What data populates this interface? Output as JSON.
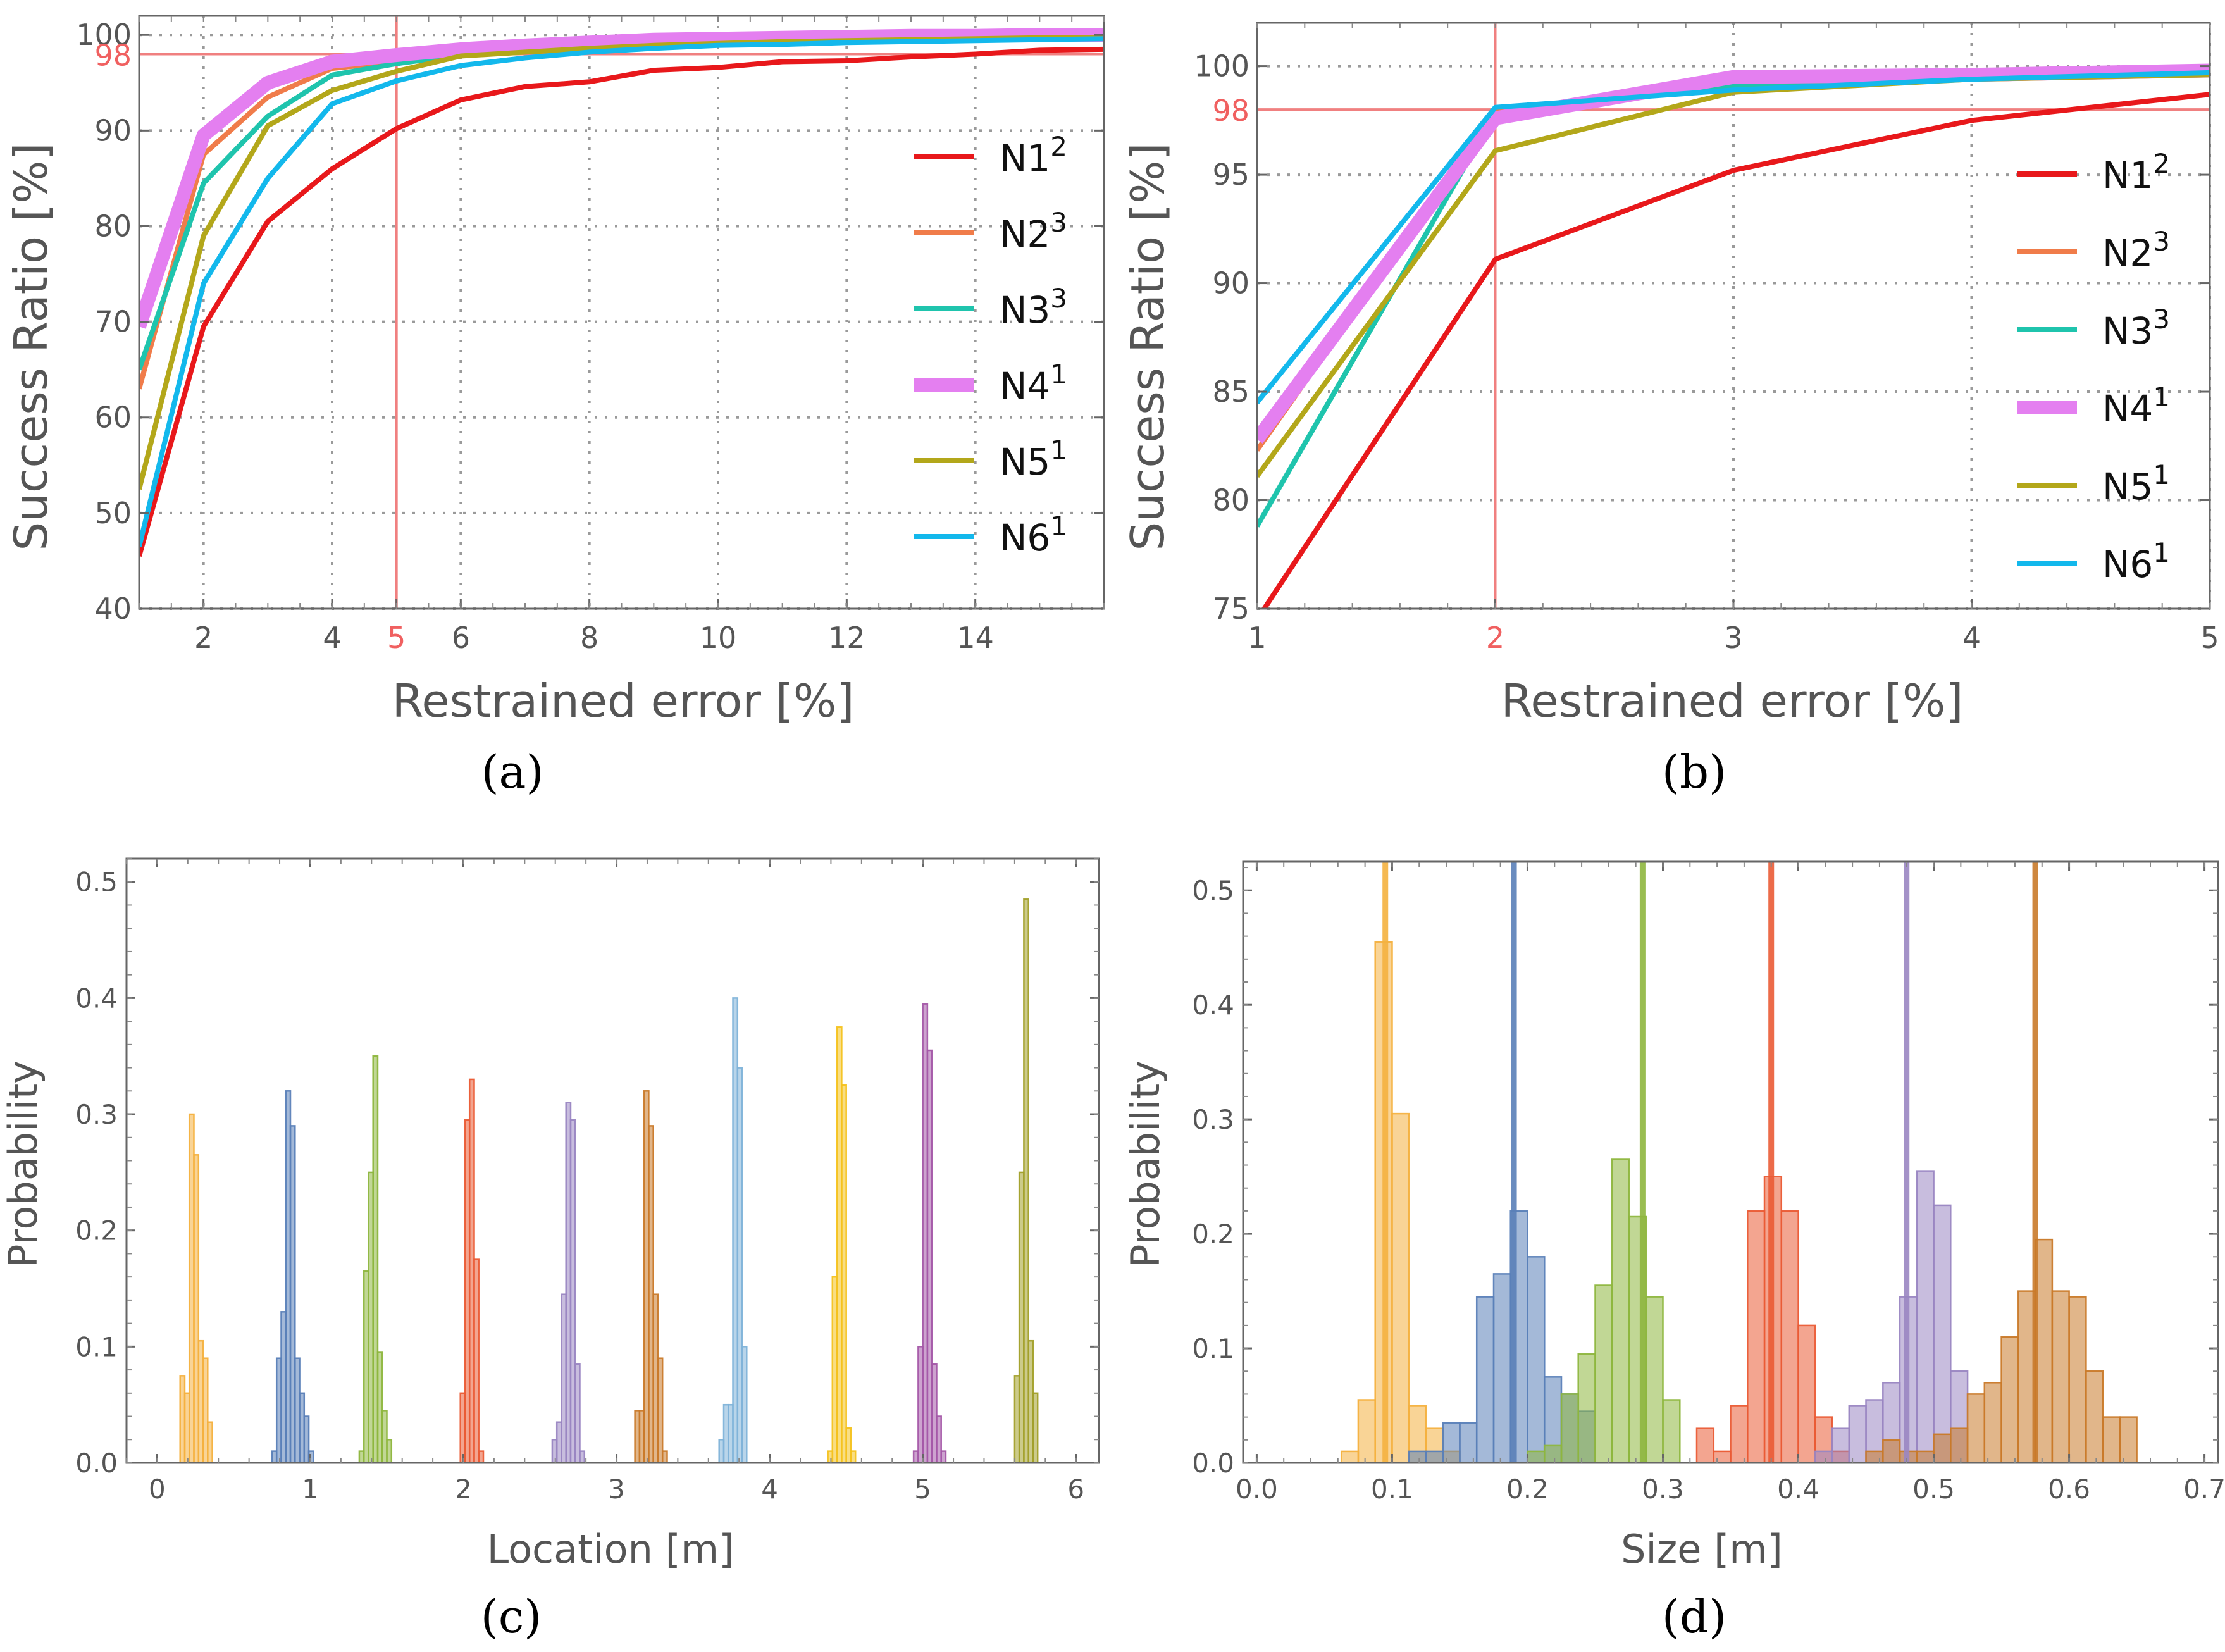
{
  "chart_data": [
    {
      "id": "a",
      "type": "line",
      "caption": "(a)",
      "xlabel": "Restrained error [%]",
      "ylabel": "Success Ratio [%]",
      "xlim": [
        1,
        16
      ],
      "ylim": [
        40,
        102
      ],
      "xticks": [
        2,
        4,
        5,
        6,
        8,
        10,
        12,
        14
      ],
      "yticks": [
        40,
        50,
        60,
        70,
        80,
        90,
        100
      ],
      "ref_x": 5,
      "ref_x_label": "5",
      "ref_y": 98,
      "ref_y_label": "98",
      "grid": true,
      "legend_position": "right",
      "x": [
        1,
        2,
        3,
        4,
        5,
        6,
        7,
        8,
        9,
        10,
        11,
        12,
        13,
        14,
        15,
        16
      ],
      "series": [
        {
          "name": "N1",
          "sup": "2",
          "color": "#e8181b",
          "width": 8,
          "values": [
            45.5,
            69.5,
            80.5,
            86,
            90.2,
            93.2,
            94.6,
            95.1,
            96.3,
            96.6,
            97.2,
            97.3,
            97.7,
            98.0,
            98.4,
            98.5
          ]
        },
        {
          "name": "N2",
          "sup": "3",
          "color": "#f07c4a",
          "width": 8,
          "values": [
            63,
            87.5,
            93.5,
            96.5,
            97.2,
            98.0,
            98.5,
            98.9,
            99.2,
            99.4,
            99.5,
            99.6,
            99.7,
            99.8,
            99.9,
            99.9
          ]
        },
        {
          "name": "N3",
          "sup": "3",
          "color": "#1fc4ad",
          "width": 8,
          "values": [
            65,
            84.5,
            91.5,
            95.8,
            97.0,
            97.9,
            98.4,
            98.8,
            99.1,
            99.3,
            99.4,
            99.5,
            99.6,
            99.6,
            99.7,
            99.7
          ]
        },
        {
          "name": "N4",
          "sup": "1",
          "color": "#e47ff0",
          "width": 22,
          "values": [
            69.5,
            89.5,
            95,
            97.2,
            97.9,
            98.5,
            98.9,
            99.2,
            99.5,
            99.6,
            99.7,
            99.8,
            99.9,
            99.9,
            100,
            100
          ]
        },
        {
          "name": "N5",
          "sup": "1",
          "color": "#b3a71a",
          "width": 8,
          "values": [
            52.5,
            79,
            90.5,
            94.2,
            96.2,
            97.8,
            98.2,
            98.6,
            98.9,
            99.1,
            99.3,
            99.4,
            99.5,
            99.6,
            99.7,
            99.7
          ]
        },
        {
          "name": "N6",
          "sup": "1",
          "color": "#13b8ec",
          "width": 8,
          "values": [
            46.5,
            74,
            85,
            92.8,
            95.2,
            96.8,
            97.6,
            98.2,
            98.6,
            98.9,
            99.0,
            99.2,
            99.3,
            99.4,
            99.5,
            99.6
          ]
        }
      ]
    },
    {
      "id": "b",
      "type": "line",
      "caption": "(b)",
      "xlabel": "Restrained error [%]",
      "ylabel": "Success Ratio [%]",
      "xlim": [
        1,
        5
      ],
      "ylim": [
        75,
        102
      ],
      "xticks": [
        1,
        2,
        3,
        4,
        5
      ],
      "yticks": [
        75,
        80,
        85,
        90,
        95,
        100
      ],
      "ref_x": 2,
      "ref_x_label": "2",
      "ref_y": 98,
      "ref_y_label": "98",
      "grid": true,
      "legend_position": "right",
      "x": [
        1,
        2,
        3,
        4,
        5
      ],
      "series": [
        {
          "name": "N1",
          "sup": "2",
          "color": "#e8181b",
          "width": 8,
          "values": [
            74.5,
            91.1,
            95.2,
            97.5,
            98.7
          ]
        },
        {
          "name": "N2",
          "sup": "3",
          "color": "#f07c4a",
          "width": 8,
          "values": [
            82.3,
            97.9,
            99.1,
            99.4,
            99.6
          ]
        },
        {
          "name": "N3",
          "sup": "3",
          "color": "#1fc4ad",
          "width": 8,
          "values": [
            78.8,
            97.8,
            99.1,
            99.5,
            99.7
          ]
        },
        {
          "name": "N4",
          "sup": "1",
          "color": "#e47ff0",
          "width": 22,
          "values": [
            82.8,
            97.6,
            99.5,
            99.6,
            99.8
          ]
        },
        {
          "name": "N5",
          "sup": "1",
          "color": "#b3a71a",
          "width": 8,
          "values": [
            81.1,
            96.1,
            98.8,
            99.4,
            99.6
          ]
        },
        {
          "name": "N6",
          "sup": "1",
          "color": "#13b8ec",
          "width": 8,
          "values": [
            84.5,
            98.1,
            98.9,
            99.4,
            99.7
          ]
        }
      ]
    },
    {
      "id": "c",
      "type": "histogram",
      "caption": "(c)",
      "xlabel": "Location [m]",
      "ylabel": "Probability",
      "xlim": [
        -0.2,
        6.15
      ],
      "ylim": [
        0,
        0.52
      ],
      "xticks": [
        0,
        1,
        2,
        3,
        4,
        5,
        6
      ],
      "yticks": [
        0.0,
        0.1,
        0.2,
        0.3,
        0.4,
        0.5
      ],
      "ytick_labels": [
        "0.0",
        "0.1",
        "0.2",
        "0.3",
        "0.4",
        "0.5"
      ],
      "bin_width": 0.03,
      "groups": [
        {
          "color": "#f4b13f",
          "start": 0.15,
          "values": [
            0.075,
            0.06,
            0.3,
            0.265,
            0.105,
            0.09,
            0.035
          ]
        },
        {
          "color": "#5a80b8",
          "start": 0.75,
          "values": [
            0.01,
            0.09,
            0.13,
            0.32,
            0.29,
            0.09,
            0.06,
            0.04,
            0.01
          ]
        },
        {
          "color": "#8eb63e",
          "start": 1.32,
          "values": [
            0.01,
            0.165,
            0.25,
            0.35,
            0.095,
            0.045,
            0.02
          ]
        },
        {
          "color": "#ea5b35",
          "start": 1.98,
          "values": [
            0.06,
            0.295,
            0.33,
            0.175,
            0.01
          ]
        },
        {
          "color": "#9a86c2",
          "start": 2.58,
          "values": [
            0.02,
            0.035,
            0.145,
            0.31,
            0.295,
            0.085,
            0.01
          ]
        },
        {
          "color": "#c97a2a",
          "start": 3.12,
          "values": [
            0.045,
            0.045,
            0.32,
            0.29,
            0.145,
            0.09,
            0.01
          ]
        },
        {
          "color": "#7fb3d9",
          "start": 3.67,
          "values": [
            0.02,
            0.05,
            0.05,
            0.4,
            0.34,
            0.1
          ]
        },
        {
          "color": "#f4c21f",
          "start": 4.38,
          "values": [
            0.01,
            0.16,
            0.375,
            0.325,
            0.03,
            0.01
          ]
        },
        {
          "color": "#a458a8",
          "start": 4.94,
          "values": [
            0.01,
            0.1,
            0.395,
            0.355,
            0.085,
            0.04,
            0.01
          ]
        },
        {
          "color": "#a2a02a",
          "start": 5.6,
          "values": [
            0.075,
            0.25,
            0.485,
            0.105,
            0.06
          ]
        }
      ]
    },
    {
      "id": "d",
      "type": "histogram",
      "caption": "(d)",
      "xlabel": "Size [m]",
      "ylabel": "Probability",
      "xlim": [
        -0.01,
        0.71
      ],
      "ylim": [
        0,
        0.525
      ],
      "xticks": [
        0.0,
        0.1,
        0.2,
        0.3,
        0.4,
        0.5,
        0.6,
        0.7
      ],
      "xtick_labels": [
        "0.0",
        "0.1",
        "0.2",
        "0.3",
        "0.4",
        "0.5",
        "0.6",
        "0.7"
      ],
      "yticks": [
        0.0,
        0.1,
        0.2,
        0.3,
        0.4,
        0.5
      ],
      "ytick_labels": [
        "0.0",
        "0.1",
        "0.2",
        "0.3",
        "0.4",
        "0.5"
      ],
      "bin_width": 0.0125,
      "groups": [
        {
          "color": "#f4b13f",
          "start": 0.0625,
          "true_value": 0.095,
          "values": [
            0.01,
            0.055,
            0.455,
            0.305,
            0.05,
            0.03,
            0.01
          ]
        },
        {
          "color": "#5a80b8",
          "start": 0.1125,
          "true_value": 0.19,
          "values": [
            0.01,
            0.01,
            0.035,
            0.035,
            0.145,
            0.165,
            0.22,
            0.18,
            0.075,
            0.06,
            0.045
          ]
        },
        {
          "color": "#8eb63e",
          "start": 0.2,
          "true_value": 0.285,
          "values": [
            0.01,
            0.015,
            0.06,
            0.095,
            0.155,
            0.265,
            0.215,
            0.145,
            0.055
          ]
        },
        {
          "color": "#ea5b35",
          "start": 0.325,
          "true_value": 0.38,
          "values": [
            0.03,
            0.01,
            0.05,
            0.22,
            0.25,
            0.22,
            0.12,
            0.04,
            0.01
          ]
        },
        {
          "color": "#9a86c2",
          "start": 0.4125,
          "true_value": 0.48,
          "values": [
            0.01,
            0.03,
            0.05,
            0.055,
            0.07,
            0.145,
            0.255,
            0.225,
            0.08
          ]
        },
        {
          "color": "#c97a2a",
          "start": 0.45,
          "true_value": 0.575,
          "values": [
            0.01,
            0.02,
            0.01,
            0.01,
            0.025,
            0.03,
            0.06,
            0.07,
            0.11,
            0.15,
            0.195,
            0.15,
            0.145,
            0.08,
            0.04,
            0.04
          ]
        }
      ]
    }
  ]
}
